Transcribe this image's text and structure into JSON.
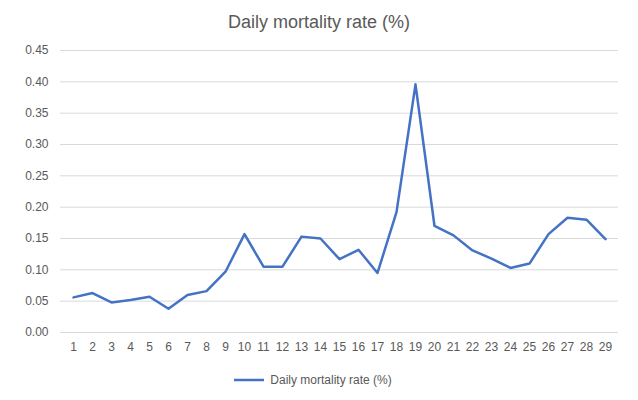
{
  "chart_data": {
    "type": "line",
    "title": "Daily mortality rate (%)",
    "categories": [
      "1",
      "2",
      "3",
      "4",
      "5",
      "6",
      "7",
      "8",
      "9",
      "10",
      "11",
      "12",
      "13",
      "14",
      "15",
      "16",
      "17",
      "18",
      "19",
      "20",
      "21",
      "22",
      "23",
      "24",
      "25",
      "26",
      "27",
      "28",
      "29"
    ],
    "series": [
      {
        "name": "Daily mortality rate (%)",
        "color": "#4472c4",
        "values": [
          0.056,
          0.063,
          0.048,
          0.052,
          0.057,
          0.038,
          0.06,
          0.066,
          0.097,
          0.157,
          0.105,
          0.105,
          0.153,
          0.15,
          0.117,
          0.132,
          0.095,
          0.192,
          0.396,
          0.17,
          0.155,
          0.131,
          0.118,
          0.103,
          0.11,
          0.157,
          0.183,
          0.18,
          0.149
        ]
      }
    ],
    "ylim": [
      0,
      0.45
    ],
    "yticks": [
      {
        "value": 0,
        "label": "0.00"
      },
      0.05,
      {
        "value": 0.1,
        "label": "0.10"
      },
      0.15,
      {
        "value": 0.2,
        "label": "0.20"
      },
      0.25,
      {
        "value": 0.3,
        "label": "0.30"
      },
      0.35,
      {
        "value": 0.4,
        "label": "0.40"
      },
      0.45
    ],
    "grid": true,
    "legend": "bottom"
  }
}
